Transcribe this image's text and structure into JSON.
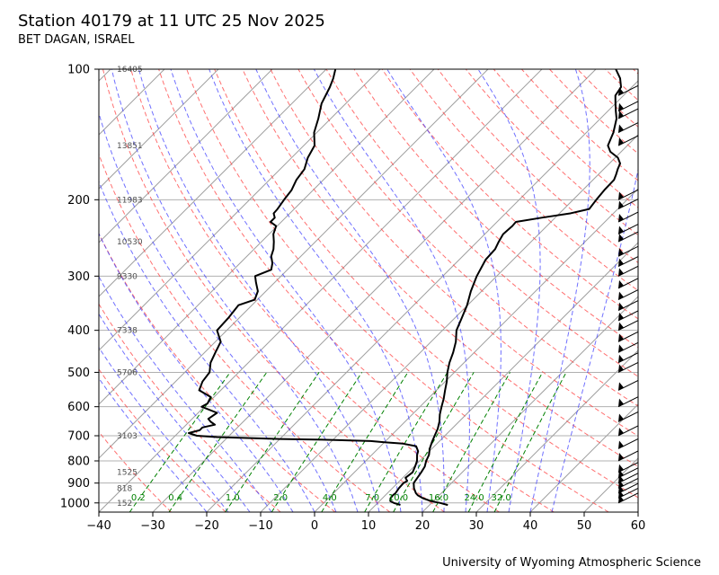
{
  "header": {
    "title": "Station 40179 at 11 UTC 25 Nov 2025",
    "subtitle": "BET DAGAN, ISRAEL"
  },
  "footer": {
    "credit": "University of Wyoming Atmospheric Science"
  },
  "colors": {
    "temperature": "#000000",
    "dewpoint": "#000000",
    "isotherm": "#a0a0a0",
    "dry_adiabat": "#ff4040",
    "moist_adiabat": "#4040ff",
    "mixing_ratio": "#008000",
    "height_label": "#505050"
  },
  "chart_data": {
    "type": "skew-t log-p",
    "xlim": [
      -40,
      60
    ],
    "ylim_pressure": [
      1050,
      100
    ],
    "x_ticks": [
      -40,
      -30,
      -20,
      -10,
      0,
      10,
      20,
      30,
      40,
      50,
      60
    ],
    "pressure_ticks": [
      100,
      200,
      300,
      400,
      500,
      600,
      700,
      800,
      900,
      1000
    ],
    "grid": true,
    "height_labels": [
      {
        "p": 100,
        "value": "16405"
      },
      {
        "p": 150,
        "value": "13851"
      },
      {
        "p": 200,
        "value": "11983"
      },
      {
        "p": 250,
        "value": "10530"
      },
      {
        "p": 300,
        "value": "9330"
      },
      {
        "p": 400,
        "value": "7338"
      },
      {
        "p": 500,
        "value": "5706"
      },
      {
        "p": 700,
        "value": "3103"
      },
      {
        "p": 850,
        "value": "1525"
      },
      {
        "p": 925,
        "value": "818"
      },
      {
        "p": 1000,
        "value": "152"
      }
    ],
    "mixing_ratio_labels": [
      "0.2",
      "0.4",
      "1.0",
      "2.0",
      "4.0",
      "7.0",
      "10.0",
      "16.0",
      "24.0",
      "32.0"
    ],
    "mixing_ratio_label_positions": [
      -32.7,
      -25.8,
      -15.2,
      -6.3,
      2.8,
      10.7,
      15.5,
      23.0,
      29.6,
      34.6
    ],
    "temperature": [
      [
        1011,
        23.4
      ],
      [
        1000,
        21.6
      ],
      [
        990,
        19.5
      ],
      [
        975,
        17.5
      ],
      [
        960,
        16.0
      ],
      [
        950,
        15.3
      ],
      [
        925,
        14.0
      ],
      [
        900,
        13.0
      ],
      [
        875,
        12.7
      ],
      [
        850,
        12.4
      ],
      [
        825,
        12.0
      ],
      [
        800,
        11.2
      ],
      [
        775,
        10.6
      ],
      [
        750,
        9.6
      ],
      [
        725,
        8.8
      ],
      [
        700,
        8.1
      ],
      [
        675,
        7.4
      ],
      [
        650,
        6.4
      ],
      [
        625,
        5.1
      ],
      [
        600,
        4.0
      ],
      [
        575,
        2.9
      ],
      [
        550,
        1.6
      ],
      [
        525,
        0.3
      ],
      [
        500,
        -1.3
      ],
      [
        475,
        -2.7
      ],
      [
        450,
        -3.9
      ],
      [
        425,
        -5.4
      ],
      [
        400,
        -7.4
      ],
      [
        375,
        -8.7
      ],
      [
        350,
        -10.1
      ],
      [
        325,
        -12.0
      ],
      [
        300,
        -13.7
      ],
      [
        275,
        -15.1
      ],
      [
        260,
        -15.3
      ],
      [
        250,
        -16.0
      ],
      [
        240,
        -16.6
      ],
      [
        230,
        -16.4
      ],
      [
        225,
        -16.5
      ],
      [
        220,
        -12.5
      ],
      [
        215,
        -8.0
      ],
      [
        210,
        -5.3
      ],
      [
        200,
        -5.7
      ],
      [
        190,
        -6.0
      ],
      [
        180,
        -6.1
      ],
      [
        175,
        -6.7
      ],
      [
        170,
        -7.4
      ],
      [
        165,
        -8.0
      ],
      [
        160,
        -9.5
      ],
      [
        155,
        -12.0
      ],
      [
        150,
        -13.6
      ],
      [
        140,
        -15.0
      ],
      [
        130,
        -17.0
      ],
      [
        125,
        -18.5
      ],
      [
        120,
        -20.0
      ],
      [
        115,
        -21.5
      ],
      [
        110,
        -22.0
      ],
      [
        105,
        -23.8
      ],
      [
        100,
        -26.3
      ]
    ],
    "dewpoint": [
      [
        1011,
        14.6
      ],
      [
        1000,
        13.0
      ],
      [
        990,
        12.0
      ],
      [
        975,
        11.5
      ],
      [
        960,
        11.4
      ],
      [
        950,
        11.5
      ],
      [
        925,
        11.2
      ],
      [
        900,
        11.1
      ],
      [
        890,
        11.4
      ],
      [
        875,
        10.5
      ],
      [
        850,
        10.8
      ],
      [
        825,
        10.2
      ],
      [
        800,
        9.5
      ],
      [
        775,
        8.4
      ],
      [
        760,
        7.9
      ],
      [
        740,
        6.6
      ],
      [
        730,
        3.7
      ],
      [
        725,
        0.0
      ],
      [
        720,
        -2.8
      ],
      [
        715,
        -12.0
      ],
      [
        712,
        -20.0
      ],
      [
        705,
        -32.0
      ],
      [
        700,
        -36.0
      ],
      [
        690,
        -38.0
      ],
      [
        680,
        -36.5
      ],
      [
        670,
        -36.5
      ],
      [
        660,
        -34.7
      ],
      [
        650,
        -36.0
      ],
      [
        640,
        -37.0
      ],
      [
        620,
        -36.5
      ],
      [
        600,
        -40.5
      ],
      [
        590,
        -40.0
      ],
      [
        570,
        -40.6
      ],
      [
        550,
        -44.0
      ],
      [
        525,
        -45.0
      ],
      [
        500,
        -45.4
      ],
      [
        475,
        -47.0
      ],
      [
        450,
        -48.0
      ],
      [
        425,
        -49.0
      ],
      [
        400,
        -51.8
      ],
      [
        375,
        -52.0
      ],
      [
        350,
        -52.5
      ],
      [
        340,
        -50.5
      ],
      [
        325,
        -51.5
      ],
      [
        310,
        -53.5
      ],
      [
        300,
        -54.8
      ],
      [
        290,
        -53.0
      ],
      [
        280,
        -54.0
      ],
      [
        270,
        -55.5
      ],
      [
        260,
        -56.4
      ],
      [
        250,
        -57.7
      ],
      [
        240,
        -59.2
      ],
      [
        230,
        -60.2
      ],
      [
        225,
        -62.0
      ],
      [
        220,
        -62.0
      ],
      [
        215,
        -63.0
      ],
      [
        210,
        -63.1
      ],
      [
        200,
        -63.6
      ],
      [
        190,
        -64.0
      ],
      [
        180,
        -65.0
      ],
      [
        170,
        -65.5
      ],
      [
        160,
        -67.0
      ],
      [
        150,
        -68.0
      ],
      [
        140,
        -70.5
      ],
      [
        130,
        -72.3
      ],
      [
        120,
        -74.5
      ],
      [
        110,
        -76.0
      ],
      [
        105,
        -77.0
      ],
      [
        100,
        -78.3
      ]
    ]
  }
}
